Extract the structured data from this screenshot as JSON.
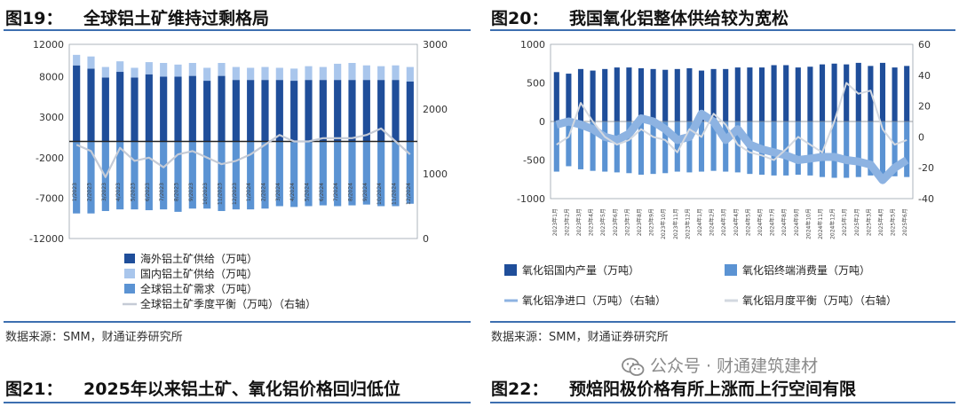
{
  "figures": [
    {
      "number": "图19：",
      "title": "全球铝土矿维持过剩格局",
      "source": "数据来源：SMM，财通证券研究所"
    },
    {
      "number": "图20：",
      "title": "我国氧化铝整体供给较为宽松",
      "source": "数据来源：SMM，财通证券研究所"
    },
    {
      "number": "图21：",
      "title": "2025年以来铝土矿、氧化铝价格回归低位"
    },
    {
      "number": "图22：",
      "title": "预焙阳极价格有所上涨而上行空间有限"
    }
  ],
  "watermark": {
    "text": "公众号 · 财通建筑建材",
    "icon": "wechat-icon"
  },
  "chart_data": [
    {
      "type": "bar",
      "left_axis": {
        "ticks": [
          12000,
          8000,
          3000,
          -2000,
          -7000,
          -12000
        ],
        "ylim": [
          -12000,
          12000
        ]
      },
      "right_axis": {
        "ticks": [
          3000,
          2000,
          1000,
          0
        ],
        "ylim": [
          0,
          3000
        ]
      },
      "categories": [
        "2023/01",
        "2023/02",
        "2023/03",
        "2023/04",
        "2023/05",
        "2023/06",
        "2023/07",
        "2023/08",
        "2023/09",
        "2023/10",
        "2023/11",
        "2023/12",
        "2024/01",
        "2024/02",
        "2024/03",
        "2024/04",
        "2024/05",
        "2024/06",
        "2024/07",
        "2024/08",
        "2024/09",
        "2024/10",
        "2024/11",
        "2024/12"
      ],
      "category_labels": [
        "1/2023",
        "2/2023",
        "3/2023",
        "4/2023",
        "5/2023",
        "6/2023",
        "7/2023",
        "8/2023",
        "9/2023",
        "10/2023",
        "11/2023",
        "12/2023",
        "1/2024",
        "2/2024",
        "3/2024",
        "4/2024",
        "5/2024",
        "6/2024",
        "7/2024",
        "8/2024",
        "9/2024",
        "10/2024",
        "11/2024",
        "12/2024"
      ],
      "series": [
        {
          "name": "海外铝土矿供给（万吨）",
          "color": "#1f4e9a",
          "axis": "left",
          "values": [
            9400,
            9000,
            7900,
            8600,
            7900,
            8300,
            8000,
            8000,
            8100,
            7500,
            8100,
            7600,
            7600,
            7600,
            7600,
            7500,
            7600,
            7600,
            7600,
            7600,
            7600,
            7600,
            7600,
            7400
          ]
        },
        {
          "name": "国内铝土矿供给（万吨）",
          "color": "#a9c6ec",
          "axis": "left",
          "values": [
            1300,
            1500,
            1300,
            1300,
            1200,
            1500,
            1700,
            1500,
            1600,
            1600,
            1600,
            1600,
            1500,
            1600,
            1500,
            1500,
            1700,
            1600,
            2000,
            2100,
            1800,
            1700,
            1800,
            1800
          ]
        },
        {
          "name": "全球铝土矿需求（万吨）",
          "color": "#5b93d3",
          "axis": "left",
          "values": [
            -8900,
            -8900,
            -8600,
            -8400,
            -8400,
            -8500,
            -8400,
            -8700,
            -8300,
            -8300,
            -8600,
            -8400,
            -8400,
            -8300,
            -8000,
            -8100,
            -8000,
            -7900,
            -8000,
            -7900,
            -7800,
            -8000,
            -8000,
            -7700
          ]
        },
        {
          "name": "全球铝土矿季度平衡（万吨）（右轴）",
          "color": "#c5cbd6",
          "axis": "right",
          "values": [
            1450,
            1350,
            950,
            1400,
            1200,
            1250,
            1100,
            1300,
            1350,
            1250,
            1150,
            1200,
            1300,
            1450,
            1600,
            1500,
            1500,
            1550,
            1550,
            1550,
            1600,
            1700,
            1500,
            1300
          ]
        }
      ],
      "legend_placement": "bottom-left"
    },
    {
      "type": "bar",
      "left_axis": {
        "ticks": [
          1000,
          500,
          0,
          -500,
          -1000
        ],
        "ylim": [
          -1000,
          1000
        ]
      },
      "right_axis": {
        "ticks": [
          60,
          40,
          20,
          0,
          -20,
          -40
        ],
        "ylim": [
          -40,
          60
        ]
      },
      "categories": [
        "2023年1月",
        "2023年2月",
        "2023年3月",
        "2023年4月",
        "2023年5月",
        "2023年6月",
        "2023年7月",
        "2023年8月",
        "2023年9月",
        "2023年10月",
        "2023年11月",
        "2023年12月",
        "2024年1月",
        "2024年2月",
        "2024年3月",
        "2024年4月",
        "2024年5月",
        "2024年6月",
        "2024年7月",
        "2024年8月",
        "2024年9月",
        "2024年10月",
        "2024年11月",
        "2024年12月",
        "2025年1月",
        "2025年2月",
        "2025年3月",
        "2025年4月",
        "2025年5月",
        "2025年6月"
      ],
      "series": [
        {
          "name": "氧化铝国内产量（万吨）",
          "color": "#1f4e9a",
          "axis": "left",
          "values": [
            640,
            620,
            680,
            660,
            680,
            700,
            700,
            690,
            680,
            670,
            680,
            690,
            660,
            680,
            680,
            700,
            700,
            700,
            730,
            730,
            700,
            710,
            740,
            750,
            740,
            760,
            720,
            760,
            700,
            720
          ]
        },
        {
          "name": "氧化铝终端消费量（万吨）",
          "color": "#5b93d3",
          "axis": "left",
          "values": [
            -650,
            -580,
            -620,
            -640,
            -650,
            -660,
            -670,
            -690,
            -680,
            -670,
            -650,
            -660,
            -650,
            -640,
            -650,
            -660,
            -680,
            -690,
            -700,
            -700,
            -690,
            -700,
            -720,
            -730,
            -730,
            -720,
            -700,
            -730,
            -710,
            -720
          ]
        },
        {
          "name": "氧化铝净进口（万吨）（右轴）",
          "color": "#8db3e2",
          "axis": "right",
          "values": [
            8,
            10,
            8,
            5,
            0,
            -2,
            2,
            12,
            10,
            5,
            -2,
            0,
            15,
            10,
            -2,
            5,
            -5,
            -8,
            -10,
            -12,
            -15,
            -14,
            -13,
            -13,
            -15,
            -16,
            -18,
            -28,
            -20,
            -15
          ]
        },
        {
          "name": "氧化铝月度平衡（万吨）（右轴）",
          "color": "#d3d8e0",
          "axis": "right",
          "values": [
            -5,
            0,
            22,
            10,
            0,
            -5,
            -2,
            5,
            0,
            -2,
            -10,
            5,
            0,
            15,
            8,
            -5,
            -10,
            -12,
            -15,
            -8,
            0,
            -5,
            -10,
            10,
            35,
            28,
            30,
            5,
            -5,
            -2
          ]
        }
      ],
      "category_labels": [
        "2023年1月",
        "2023年2月",
        "2023年3月",
        "2023年4月",
        "2023年5月",
        "2023年6月",
        "2023年7月",
        "2023年8月",
        "2023年9月",
        "2023年10月",
        "2023年11月",
        "2023年12月",
        "2024年1月",
        "2024年2月",
        "2024年3月",
        "2024年4月",
        "2024年5月",
        "2024年6月",
        "2024年7月",
        "2024年8月",
        "2024年9月",
        "2024年10月",
        "2024年11月",
        "2024年12月",
        "2025年1月",
        "2025年2月",
        "2025年3月",
        "2025年4月",
        "2025年5月",
        "2025年6月"
      ],
      "legend_placement": "bottom"
    }
  ]
}
